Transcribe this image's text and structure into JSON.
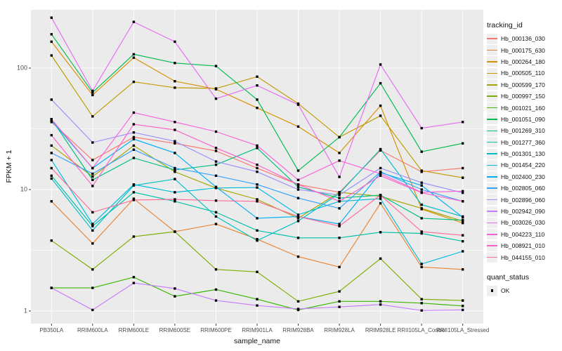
{
  "chart_data": {
    "type": "line",
    "xlabel": "sample_name",
    "ylabel": "FPKM + 1",
    "y_scale": "log10",
    "y_ticks": [
      "1",
      "10",
      "100"
    ],
    "y_tick_values": [
      1,
      10,
      100
    ],
    "y_minor_values": [
      3.162,
      31.62
    ],
    "grid": true,
    "legend_position": "right",
    "panel_bg": "#ebebeb",
    "grid_color": "#ffffff",
    "tick_text_color": "#4d4d4d",
    "point_marker": "square",
    "point_color": "#000000",
    "categories": [
      "PB350LA",
      "RRIM600LA",
      "RRIM600LE",
      "RRIM600SE",
      "RRIM600PE",
      "RRIM901LA",
      "RRIM928BA",
      "RRIM928LA",
      "RRIM928LE",
      "RRII105LA_Control",
      "RRII105LA_Stressed"
    ],
    "series": [
      {
        "name": "Hb_000136_030",
        "color": "#F8766D",
        "values": [
          36,
          17.5,
          27,
          24,
          20.8,
          15,
          11,
          9.5,
          21,
          14,
          15
        ]
      },
      {
        "name": "Hb_000175_630",
        "color": "#EA8331",
        "values": [
          8.0,
          3.6,
          8.4,
          4.5,
          5.2,
          3.9,
          2.8,
          2.3,
          7.7,
          2.3,
          2.2
        ]
      },
      {
        "name": "Hb_000264_180",
        "color": "#D89000",
        "values": [
          165,
          60,
          122,
          78,
          67,
          47,
          33,
          20,
          49,
          6.9,
          5.3
        ]
      },
      {
        "name": "Hb_000505_110",
        "color": "#C09B00",
        "values": [
          127,
          40,
          77,
          69,
          68,
          85,
          51,
          27,
          40.5,
          14.3,
          12.5
        ]
      },
      {
        "name": "Hb_000599_170",
        "color": "#A3A500",
        "values": [
          23,
          12.8,
          23,
          14,
          10.3,
          8.3,
          5.8,
          9.5,
          8.8,
          7.0,
          5.5
        ]
      },
      {
        "name": "Hb_000997_150",
        "color": "#7CAE00",
        "values": [
          3.8,
          2.2,
          4.1,
          4.5,
          2.2,
          2.1,
          1.2,
          1.45,
          2.7,
          1.25,
          1.22
        ]
      },
      {
        "name": "Hb_001021_160",
        "color": "#39B600",
        "values": [
          1.55,
          1.55,
          1.9,
          1.32,
          1.5,
          1.25,
          1.02,
          1.2,
          1.2,
          1.16,
          1.1
        ]
      },
      {
        "name": "Hb_001051_090",
        "color": "#00BB4E",
        "values": [
          190,
          63,
          130,
          110,
          104,
          55,
          14.3,
          27,
          75,
          20.5,
          24
        ]
      },
      {
        "name": "Hb_001269_310",
        "color": "#00BF7D",
        "values": [
          38,
          12,
          18.2,
          14.5,
          16,
          22,
          10.5,
          8.5,
          9.0,
          5.8,
          5.6
        ]
      },
      {
        "name": "Hb_001277_360",
        "color": "#00C1A7",
        "values": [
          13,
          5.0,
          9.5,
          8.0,
          6.5,
          4.6,
          4.0,
          4.0,
          4.45,
          4.35,
          3.75
        ]
      },
      {
        "name": "Hb_001301_130",
        "color": "#00BFC4",
        "values": [
          12.3,
          4.6,
          10.8,
          12.2,
          6.0,
          3.8,
          5.5,
          9.3,
          21.5,
          7.5,
          6.0
        ]
      },
      {
        "name": "Hb_001454_220",
        "color": "#00BADE",
        "values": [
          17.5,
          5.2,
          11.0,
          9.5,
          10.3,
          10.4,
          6.2,
          8.0,
          8.4,
          2.44,
          3.1
        ]
      },
      {
        "name": "Hb_002400_230",
        "color": "#00B0F6",
        "values": [
          37,
          15,
          26,
          20,
          10.5,
          5.8,
          6.0,
          5.2,
          13.8,
          10.8,
          5.9
        ]
      },
      {
        "name": "Hb_002805_060",
        "color": "#35A2FF",
        "values": [
          20,
          13.5,
          21.3,
          15,
          13,
          11,
          8.5,
          7.0,
          14,
          10,
          8.0
        ]
      },
      {
        "name": "Hb_002896_060",
        "color": "#9590FF",
        "values": [
          55,
          24.4,
          29.5,
          25,
          17,
          14,
          10,
          9.0,
          15,
          11.4,
          9.4
        ]
      },
      {
        "name": "Hb_002942_090",
        "color": "#C77CFF",
        "values": [
          1.55,
          1.02,
          1.7,
          1.53,
          1.22,
          1.11,
          1.04,
          1.08,
          1.13,
          1.01,
          1.02
        ]
      },
      {
        "name": "Hb_003026_030",
        "color": "#E76BF3",
        "values": [
          260,
          65,
          240,
          165,
          56,
          72,
          50,
          12.7,
          107,
          32,
          36
        ]
      },
      {
        "name": "Hb_004223_110",
        "color": "#FA62DB",
        "values": [
          38,
          15,
          43,
          36,
          30,
          23,
          12,
          17.3,
          13.5,
          9.5,
          9.7
        ]
      },
      {
        "name": "Hb_008921_010",
        "color": "#FF61C7",
        "values": [
          28,
          10.7,
          34.5,
          31,
          22,
          16,
          11,
          8.0,
          13,
          9.4,
          8.0
        ]
      },
      {
        "name": "Hb_044155_010",
        "color": "#FF6A98",
        "values": [
          15,
          6.5,
          8.2,
          8.3,
          8.1,
          8.0,
          6.0,
          5.0,
          9.0,
          4.5,
          4.2
        ]
      }
    ]
  },
  "legend": {
    "tracking_title": "tracking_id",
    "quant_title": "quant_status",
    "quant_items": [
      {
        "label": "OK",
        "marker": "square",
        "color": "#000000"
      }
    ]
  }
}
